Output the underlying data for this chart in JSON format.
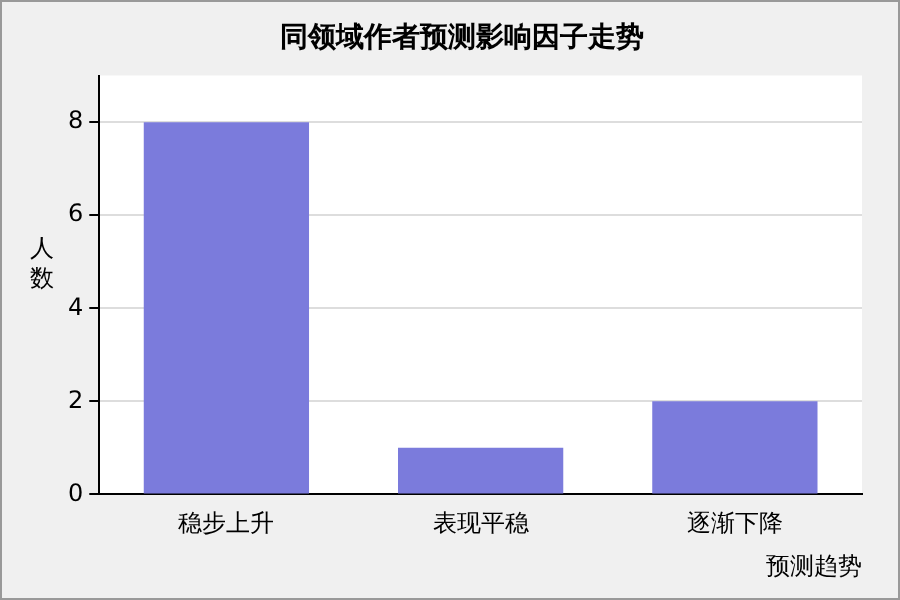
{
  "chart_data": {
    "type": "bar",
    "title": "同领域作者预测影响因子走势",
    "xlabel": "预测趋势",
    "ylabel": "人数",
    "categories": [
      "稳步上升",
      "表现平稳",
      "逐渐下降"
    ],
    "values": [
      8,
      1,
      2
    ],
    "color": "#7b7bdc",
    "ylim": [
      0,
      9
    ],
    "yticks": [
      0,
      2,
      4,
      6,
      8
    ],
    "grid": "y"
  }
}
